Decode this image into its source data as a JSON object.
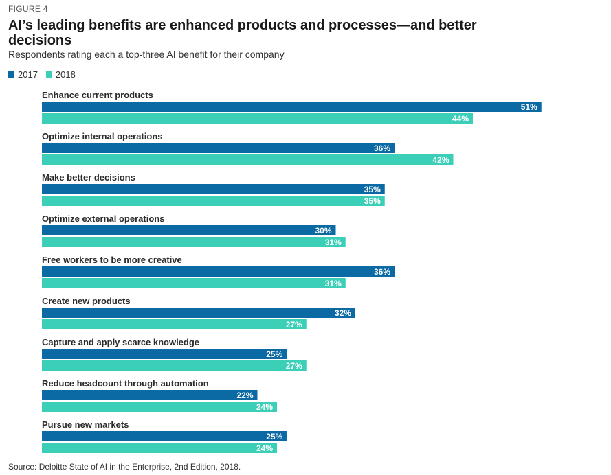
{
  "figure_label": "FIGURE 4",
  "title": "AI’s leading benefits are enhanced products and processes—and better decisions",
  "subtitle": "Respondents rating each a top-three AI benefit for their company",
  "source": "Source: Deloitte State of AI in the Enterprise, 2nd Edition, 2018.",
  "colors": {
    "2017": "#0b6aa3",
    "2018": "#3ccfb8"
  },
  "chart_data": {
    "type": "bar",
    "orientation": "horizontal",
    "value_suffix": "%",
    "categories": [
      "Enhance current products",
      "Optimize internal operations",
      "Make better decisions",
      "Optimize external operations",
      "Free workers to be more creative",
      "Create new products",
      "Capture and apply scarce knowledge",
      "Reduce headcount through automation",
      "Pursue new markets"
    ],
    "series": [
      {
        "name": "2017",
        "values": [
          51,
          36,
          35,
          30,
          36,
          32,
          25,
          22,
          25
        ]
      },
      {
        "name": "2018",
        "values": [
          44,
          42,
          35,
          31,
          31,
          27,
          27,
          24,
          24
        ]
      }
    ],
    "legend_position": "top-left",
    "grid": false
  }
}
